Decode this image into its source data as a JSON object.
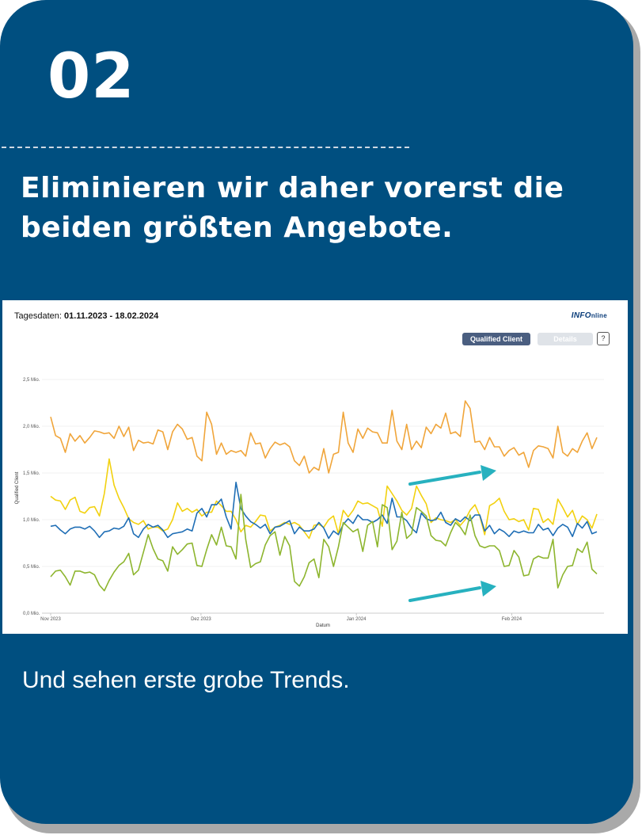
{
  "slide": {
    "step_number": "02",
    "headline_line1": "Eliminieren wir daher vorerst die",
    "headline_line2": "beiden größten Angebote.",
    "closing_text": "Und sehen erste grobe Trends.",
    "background_color": "#004f80"
  },
  "panel": {
    "date_label": "Tagesdaten:",
    "date_range": "01.11.2023 - 18.02.2024",
    "brand_part1": "INFO",
    "brand_part2": "nline",
    "buttons": {
      "qualified_client": "Qualified Client",
      "details": "Details",
      "help": "?"
    }
  },
  "chart_data": {
    "type": "line",
    "title": "",
    "xlabel": "Datum",
    "ylabel": "Qualified Client",
    "x_range": [
      "2023-11-01",
      "2024-02-18"
    ],
    "ylim": [
      0,
      2.5
    ],
    "y_ticks": [
      "0,0 Mio.",
      "0,5 Mio.",
      "1,0 Mio.",
      "1,5 Mio.",
      "2,0 Mio.",
      "2,5 Mio."
    ],
    "x_ticks": [
      "Nov 2023",
      "Dez 2023",
      "Jan 2024",
      "Feb 2024"
    ],
    "grid": true,
    "legend": "none",
    "series": [
      {
        "color": "#f0a53a",
        "values": [
          2.1,
          1.9,
          1.87,
          1.72,
          1.92,
          1.84,
          1.9,
          1.82,
          1.88,
          1.95,
          1.94,
          1.92,
          1.93,
          1.87,
          2.0,
          1.89,
          1.99,
          1.74,
          1.85,
          1.82,
          1.83,
          1.81,
          1.96,
          1.94,
          1.75,
          1.94,
          2.02,
          1.97,
          1.86,
          1.88,
          1.68,
          1.63,
          2.15,
          2.02,
          1.7,
          1.82,
          1.7,
          1.74,
          1.72,
          1.74,
          1.68,
          1.93,
          1.81,
          1.82,
          1.66,
          1.76,
          1.83,
          1.8,
          1.82,
          1.78,
          1.63,
          1.58,
          1.68,
          1.5,
          1.56,
          1.53,
          1.76,
          1.5,
          1.7,
          1.72,
          2.15,
          1.82,
          1.72,
          1.97,
          1.87,
          1.98,
          1.94,
          1.93,
          1.82,
          1.82,
          2.17,
          1.84,
          1.75,
          2.02,
          1.75,
          1.84,
          1.77,
          1.99,
          1.92,
          2.02,
          1.98,
          2.14,
          1.92,
          1.94,
          1.89,
          2.27,
          2.19,
          1.83,
          1.84,
          1.75,
          1.88,
          1.78,
          1.78,
          1.68,
          1.74,
          1.77,
          1.69,
          1.72,
          1.56,
          1.74,
          1.79,
          1.78,
          1.76,
          1.66,
          2.0,
          1.72,
          1.68,
          1.76,
          1.72,
          1.84,
          1.93,
          1.76,
          1.88
        ]
      },
      {
        "color": "#f2d10f",
        "values": [
          1.25,
          1.21,
          1.2,
          1.11,
          1.21,
          1.24,
          1.09,
          1.07,
          1.13,
          1.14,
          1.04,
          1.28,
          1.65,
          1.37,
          1.23,
          1.13,
          1.01,
          0.97,
          0.95,
          0.99,
          0.9,
          0.92,
          0.92,
          0.88,
          0.9,
          1.0,
          1.18,
          1.09,
          1.12,
          1.08,
          1.11,
          1.04,
          1.08,
          1.08,
          1.2,
          1.15,
          1.09,
          1.09,
          1.0,
          0.87,
          0.94,
          0.92,
          0.98,
          1.05,
          1.04,
          0.88,
          0.92,
          0.94,
          0.97,
          0.95,
          0.97,
          0.94,
          0.87,
          0.8,
          0.94,
          0.95,
          0.92,
          1.0,
          1.04,
          0.85,
          1.1,
          1.03,
          1.1,
          1.2,
          1.17,
          1.18,
          1.15,
          1.12,
          0.93,
          1.36,
          1.28,
          1.2,
          1.1,
          1.05,
          1.12,
          1.36,
          1.26,
          1.17,
          0.97,
          1.02,
          1.0,
          0.99,
          0.97,
          1.0,
          0.94,
          1.0,
          1.1,
          1.16,
          1.04,
          0.84,
          1.15,
          1.18,
          1.23,
          1.09,
          1.0,
          1.01,
          0.98,
          1.0,
          0.89,
          1.12,
          1.11,
          0.97,
          1.01,
          0.95,
          1.22,
          1.13,
          1.03,
          1.1,
          0.95,
          1.04,
          1.0,
          0.91,
          1.06
        ]
      },
      {
        "color": "#1f6eb5",
        "values": [
          0.93,
          0.94,
          0.89,
          0.85,
          0.9,
          0.92,
          0.92,
          0.9,
          0.93,
          0.88,
          0.81,
          0.87,
          0.88,
          0.91,
          0.9,
          0.93,
          1.02,
          0.85,
          0.81,
          0.9,
          0.95,
          0.92,
          0.94,
          0.89,
          0.81,
          0.85,
          0.86,
          0.87,
          0.9,
          0.88,
          1.07,
          1.12,
          1.03,
          1.16,
          1.16,
          1.22,
          1.03,
          0.9,
          1.4,
          1.12,
          1.04,
          0.98,
          0.95,
          0.91,
          0.95,
          0.85,
          0.92,
          0.93,
          0.96,
          0.99,
          0.85,
          0.92,
          0.88,
          0.88,
          0.9,
          0.97,
          0.91,
          0.8,
          0.88,
          0.84,
          0.95,
          1.01,
          0.96,
          1.05,
          1.0,
          1.0,
          0.97,
          1.0,
          1.05,
          0.96,
          1.23,
          1.03,
          1.03,
          0.99,
          0.91,
          0.86,
          1.07,
          1.01,
          0.99,
          1.0,
          1.08,
          0.97,
          0.94,
          1.01,
          0.98,
          1.03,
          0.99,
          1.05,
          1.05,
          0.88,
          0.94,
          0.85,
          0.9,
          0.87,
          0.82,
          0.88,
          0.86,
          0.88,
          0.86,
          0.86,
          0.95,
          0.89,
          0.91,
          0.83,
          0.91,
          0.95,
          0.92,
          0.82,
          0.96,
          0.91,
          0.98,
          0.85,
          0.87
        ]
      },
      {
        "color": "#8db52e",
        "values": [
          0.39,
          0.45,
          0.46,
          0.39,
          0.3,
          0.45,
          0.45,
          0.43,
          0.44,
          0.41,
          0.3,
          0.24,
          0.35,
          0.44,
          0.51,
          0.55,
          0.64,
          0.41,
          0.46,
          0.65,
          0.84,
          0.69,
          0.58,
          0.56,
          0.45,
          0.71,
          0.63,
          0.68,
          0.74,
          0.75,
          0.51,
          0.5,
          0.68,
          0.84,
          0.73,
          0.92,
          0.72,
          0.71,
          0.58,
          1.27,
          0.79,
          0.49,
          0.53,
          0.55,
          0.73,
          0.83,
          0.87,
          0.62,
          0.82,
          0.72,
          0.34,
          0.29,
          0.39,
          0.54,
          0.58,
          0.38,
          0.79,
          0.71,
          0.5,
          0.71,
          0.97,
          0.92,
          0.87,
          0.9,
          0.66,
          0.94,
          0.98,
          0.71,
          1.16,
          1.13,
          0.68,
          0.77,
          1.08,
          0.8,
          0.85,
          1.13,
          1.09,
          1.04,
          0.83,
          0.78,
          0.77,
          0.72,
          0.86,
          0.97,
          0.92,
          0.84,
          1.05,
          0.83,
          0.72,
          0.7,
          0.72,
          0.72,
          0.67,
          0.5,
          0.51,
          0.67,
          0.6,
          0.4,
          0.41,
          0.58,
          0.61,
          0.59,
          0.59,
          0.79,
          0.27,
          0.41,
          0.5,
          0.51,
          0.69,
          0.65,
          0.76,
          0.47,
          0.42
        ]
      }
    ],
    "annotations": [
      {
        "type": "arrow",
        "color": "#27b1bf",
        "direction": "up-right"
      },
      {
        "type": "arrow",
        "color": "#27b1bf",
        "direction": "up-right"
      }
    ]
  }
}
